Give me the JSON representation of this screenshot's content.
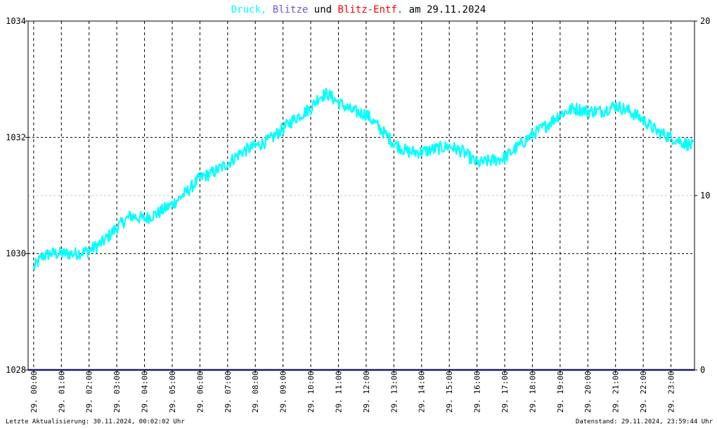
{
  "title": {
    "part1": "Druck,",
    "part2": "Blitze",
    "part3": "und",
    "part4": "Blitz-Entf.",
    "part5": "am 29.11.2024",
    "colors": {
      "pressure": "#00ffff",
      "strikes": "#6a5acd",
      "distance": "#ff0000",
      "text": "#000000"
    }
  },
  "footer": {
    "left": "Letzte Aktualisierung: 30.11.2024, 00:02:02 Uhr",
    "right": "Datenstand: 29.11.2024, 23:59:44 Uhr"
  },
  "chart_data": {
    "type": "line",
    "x_tick_labels": [
      "29. 00:00",
      "29. 01:00",
      "29. 02:00",
      "29. 03:00",
      "29. 04:00",
      "29. 05:00",
      "29. 06:00",
      "29. 07:00",
      "29. 08:00",
      "29. 09:00",
      "29. 10:00",
      "29. 11:00",
      "29. 12:00",
      "29. 13:00",
      "29. 14:00",
      "29. 15:00",
      "29. 16:00",
      "29. 17:00",
      "29. 18:00",
      "29. 19:00",
      "29. 20:00",
      "29. 21:00",
      "29. 22:00",
      "29. 23:00"
    ],
    "x_range_hours": [
      -0.2,
      23.85
    ],
    "y_left": {
      "min": 1028,
      "max": 1034,
      "ticks": [
        "1028",
        "1030",
        "1032",
        "1034"
      ]
    },
    "y_right": {
      "min": 0,
      "max": 20,
      "ticks": [
        "0",
        "10",
        "20"
      ],
      "red_tick": "10"
    },
    "grid": true,
    "series": [
      {
        "name": "Druck",
        "color": "#00ffff",
        "hours": [
          0.0,
          0.3,
          0.6,
          1.0,
          1.5,
          2.0,
          2.5,
          3.0,
          3.5,
          4.0,
          4.5,
          5.0,
          5.5,
          6.0,
          6.5,
          7.0,
          7.5,
          8.0,
          8.5,
          9.0,
          9.5,
          10.0,
          10.3,
          10.6,
          11.0,
          11.5,
          12.0,
          12.5,
          13.0,
          13.5,
          14.0,
          14.5,
          15.0,
          15.5,
          16.0,
          16.5,
          17.0,
          17.5,
          18.0,
          18.5,
          19.0,
          19.5,
          20.0,
          20.5,
          21.0,
          21.5,
          22.0,
          22.5,
          23.0,
          23.5,
          23.8
        ],
        "values": [
          1029.75,
          1029.95,
          1030.0,
          1030.0,
          1030.0,
          1030.05,
          1030.2,
          1030.45,
          1030.65,
          1030.6,
          1030.7,
          1030.85,
          1031.05,
          1031.3,
          1031.4,
          1031.55,
          1031.75,
          1031.85,
          1031.95,
          1032.15,
          1032.35,
          1032.5,
          1032.7,
          1032.75,
          1032.6,
          1032.45,
          1032.4,
          1032.15,
          1031.9,
          1031.75,
          1031.75,
          1031.8,
          1031.85,
          1031.75,
          1031.55,
          1031.6,
          1031.65,
          1031.85,
          1032.05,
          1032.2,
          1032.4,
          1032.5,
          1032.45,
          1032.45,
          1032.55,
          1032.45,
          1032.3,
          1032.1,
          1032.0,
          1031.9,
          1031.85
        ]
      },
      {
        "name": "Blitze",
        "color": "#6a5acd",
        "hours": [
          0,
          23.85
        ],
        "values": [
          0,
          0
        ]
      },
      {
        "name": "Blitz-Entf.",
        "color": "#ff0000",
        "hours": [],
        "values": []
      }
    ]
  }
}
